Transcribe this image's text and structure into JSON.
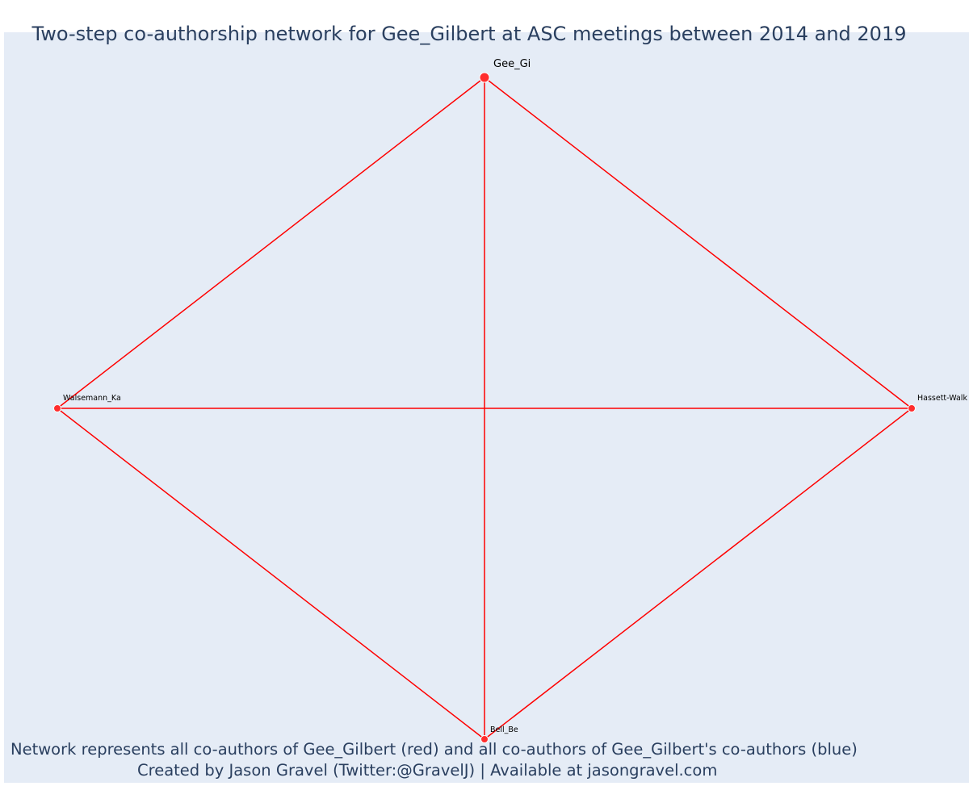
{
  "title": "Two-step co-authorship network for Gee_Gilbert at ASC meetings between 2014 and 2019",
  "footer": {
    "line1": "Network represents all co-authors of Gee_Gilbert (red) and all co-authors of Gee_Gilbert's co-authors (blue)",
    "line2": "Created by Jason Gravel (Twitter:@GravelJ) | Available at jasongravel.com"
  },
  "colors": {
    "background": "#e5ecf6",
    "edge": "#ff0000",
    "node": "#ff2d2d",
    "text": "#2a3f5f"
  },
  "network": {
    "nodes": [
      {
        "id": "gee",
        "label": "Gee_Gi",
        "role": "focal"
      },
      {
        "id": "walsemann",
        "label": "Walsemann_Ka",
        "role": "coauthor"
      },
      {
        "id": "hassett",
        "label": "Hassett-Walk",
        "role": "coauthor"
      },
      {
        "id": "bell",
        "label": "Bell_Be",
        "role": "coauthor"
      }
    ],
    "edges": [
      [
        "gee",
        "walsemann"
      ],
      [
        "gee",
        "hassett"
      ],
      [
        "gee",
        "bell"
      ],
      [
        "walsemann",
        "hassett"
      ],
      [
        "walsemann",
        "bell"
      ],
      [
        "hassett",
        "bell"
      ]
    ]
  }
}
